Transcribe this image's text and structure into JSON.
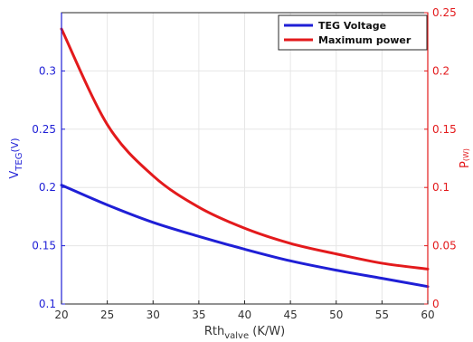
{
  "chart_data": {
    "type": "line",
    "x": [
      20,
      25,
      30,
      35,
      40,
      45,
      50,
      55,
      60
    ],
    "xlim": [
      20,
      60
    ],
    "xticks": [
      20,
      25,
      30,
      35,
      40,
      45,
      50,
      55,
      60
    ],
    "xlabel": {
      "main": "Rth",
      "sub": "valve",
      "unit": " (K/W)"
    },
    "ylabel_left": {
      "main": "V",
      "sub": "TEG",
      "unit": "(V)"
    },
    "ylabel_right": {
      "main": "P",
      "unit": "(W)"
    },
    "ylim_left": [
      0.1,
      0.35
    ],
    "ylim_right": [
      0,
      0.25
    ],
    "yticks_left": [
      0.1,
      0.15,
      0.2,
      0.25,
      0.3
    ],
    "yticks_right": [
      0,
      0.05,
      0.1,
      0.15,
      0.2,
      0.25
    ],
    "grid": true,
    "legend_position": "top-right",
    "series": [
      {
        "name": "TEG Voltage",
        "axis": "left",
        "color": "#1f1fd6",
        "values": [
          0.202,
          0.185,
          0.17,
          0.158,
          0.147,
          0.137,
          0.129,
          0.122,
          0.115
        ]
      },
      {
        "name": "Maximum power",
        "axis": "right",
        "color": "#e31a1c",
        "values": [
          0.236,
          0.154,
          0.11,
          0.083,
          0.065,
          0.052,
          0.043,
          0.035,
          0.03
        ]
      }
    ]
  }
}
